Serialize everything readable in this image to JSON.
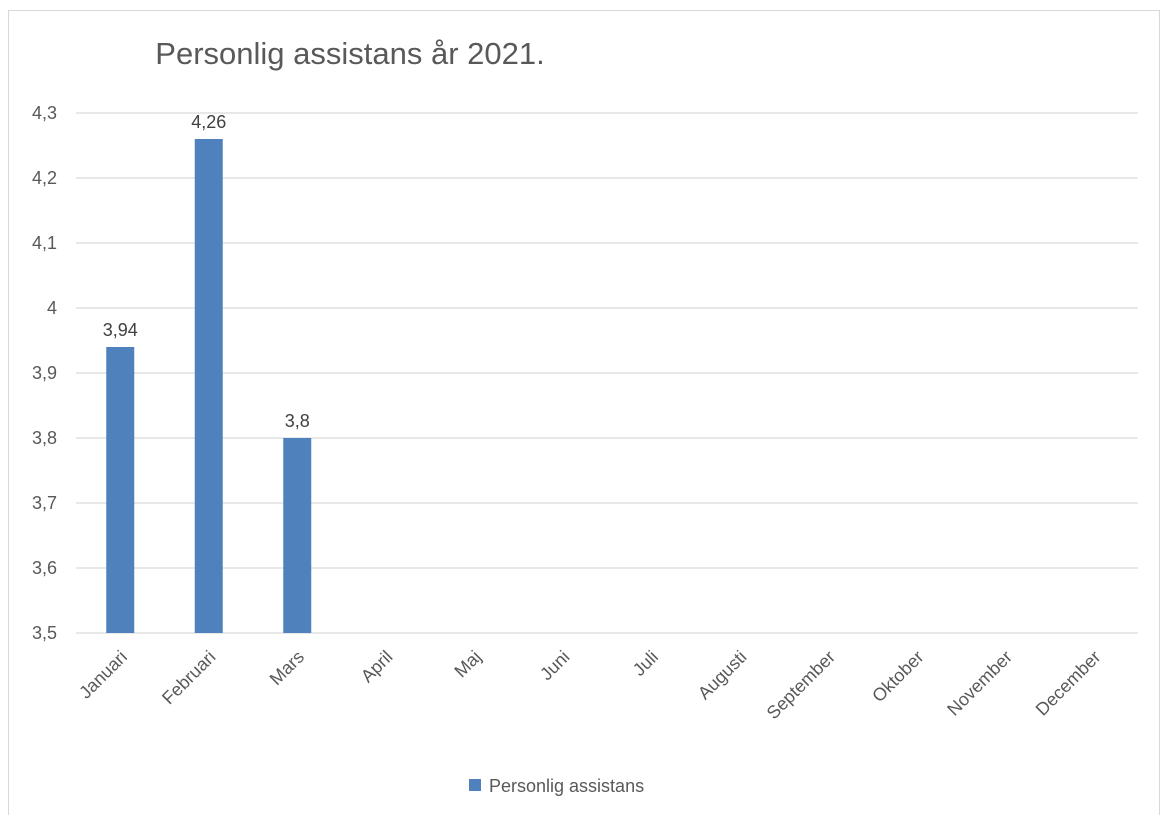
{
  "chart_data": {
    "type": "bar",
    "title": "Personlig assistans år 2021.",
    "xlabel": "",
    "ylabel": "",
    "categories": [
      "Januari",
      "Februari",
      "Mars",
      "April",
      "Maj",
      "Juni",
      "Juli",
      "Augusti",
      "September",
      "Oktober",
      "November",
      "December"
    ],
    "series": [
      {
        "name": "Personlig assistans",
        "values": [
          3.94,
          4.26,
          3.8,
          null,
          null,
          null,
          null,
          null,
          null,
          null,
          null,
          null
        ],
        "data_labels": [
          "3,94",
          "4,26",
          "3,8",
          "",
          "",
          "",
          "",
          "",
          "",
          "",
          "",
          ""
        ]
      }
    ],
    "ylim": [
      3.5,
      4.3
    ],
    "yticks": [
      "3,5",
      "3,6",
      "3,7",
      "3,8",
      "3,9",
      "4",
      "4,1",
      "4,2",
      "4,3"
    ],
    "grid": true,
    "legend_position": "bottom",
    "colors": {
      "bar": "#4f81bd",
      "grid": "#d9d9d9",
      "text": "#595959"
    }
  }
}
